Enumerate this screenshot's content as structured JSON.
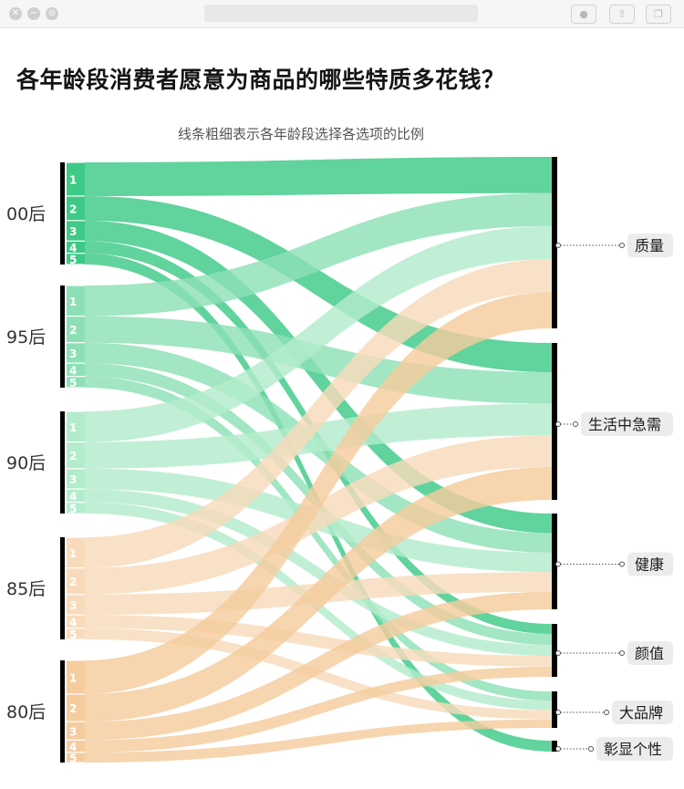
{
  "window": {
    "controls": [
      "close-icon",
      "minimize-icon",
      "maximize-icon"
    ],
    "toolbar_icons": [
      "record-icon",
      "share-icon",
      "window-icon"
    ]
  },
  "title": "各年龄段消费者愿意为商品的哪些特质多花钱？",
  "subtitle": "线条粗细表示各年龄段选择各选项的比例",
  "colors": {
    "00后": "#3ec987",
    "95后": "#8de0b6",
    "90后": "#b3eccc",
    "85后": "#f8dbbb",
    "80后": "#f4cc9d",
    "bar": "#000000"
  },
  "chart_data": {
    "type": "sankey",
    "sources": [
      "00后",
      "95后",
      "90后",
      "85后",
      "80后"
    ],
    "option_numbers": [
      "1",
      "2",
      "3",
      "4",
      "5"
    ],
    "targets": [
      "质量",
      "生活中急需",
      "健康",
      "颜值",
      "大品牌",
      "彰显个性"
    ],
    "links": [
      {
        "source": "00后",
        "rank": 1,
        "target": "质量",
        "share": 0.33
      },
      {
        "source": "00后",
        "rank": 2,
        "target": "生活中急需",
        "share": 0.24
      },
      {
        "source": "00后",
        "rank": 3,
        "target": "健康",
        "share": 0.2
      },
      {
        "source": "00后",
        "rank": 4,
        "target": "颜值",
        "share": 0.12
      },
      {
        "source": "00后",
        "rank": 5,
        "target": "彰显个性",
        "share": 0.11
      },
      {
        "source": "95后",
        "rank": 1,
        "target": "质量",
        "share": 0.3
      },
      {
        "source": "95后",
        "rank": 2,
        "target": "生活中急需",
        "share": 0.26
      },
      {
        "source": "95后",
        "rank": 3,
        "target": "健康",
        "share": 0.2
      },
      {
        "source": "95后",
        "rank": 4,
        "target": "颜值",
        "share": 0.13
      },
      {
        "source": "95后",
        "rank": 5,
        "target": "大品牌",
        "share": 0.11
      },
      {
        "source": "90后",
        "rank": 1,
        "target": "质量",
        "share": 0.3
      },
      {
        "source": "90后",
        "rank": 2,
        "target": "生活中急需",
        "share": 0.26
      },
      {
        "source": "90后",
        "rank": 3,
        "target": "健康",
        "share": 0.2
      },
      {
        "source": "90后",
        "rank": 4,
        "target": "颜值",
        "share": 0.13
      },
      {
        "source": "90后",
        "rank": 5,
        "target": "大品牌",
        "share": 0.11
      },
      {
        "source": "85后",
        "rank": 1,
        "target": "质量",
        "share": 0.3
      },
      {
        "source": "85后",
        "rank": 2,
        "target": "生活中急需",
        "share": 0.26
      },
      {
        "source": "85后",
        "rank": 3,
        "target": "健康",
        "share": 0.2
      },
      {
        "source": "85后",
        "rank": 4,
        "target": "颜值",
        "share": 0.13
      },
      {
        "source": "85后",
        "rank": 5,
        "target": "大品牌",
        "share": 0.11
      },
      {
        "source": "80后",
        "rank": 1,
        "target": "质量",
        "share": 0.33
      },
      {
        "source": "80后",
        "rank": 2,
        "target": "生活中急需",
        "share": 0.27
      },
      {
        "source": "80后",
        "rank": 3,
        "target": "健康",
        "share": 0.18
      },
      {
        "source": "80后",
        "rank": 4,
        "target": "颜值",
        "share": 0.12
      },
      {
        "source": "80后",
        "rank": 5,
        "target": "大品牌",
        "share": 0.1
      }
    ]
  }
}
